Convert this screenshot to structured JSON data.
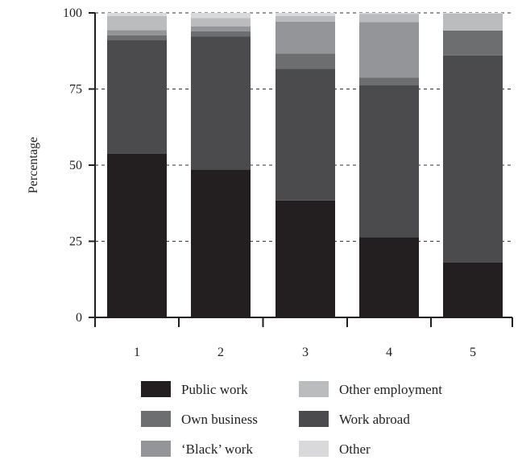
{
  "chart_data": {
    "type": "bar",
    "stacked": true,
    "categories": [
      "1",
      "2",
      "3",
      "4",
      "5"
    ],
    "ylabel": "Percentage",
    "ylim": [
      0,
      100
    ],
    "yticks": [
      0,
      25,
      50,
      75,
      100
    ],
    "grid": "horizontal-dashed",
    "legend_position": "bottom",
    "series": [
      {
        "name": "Public work",
        "color": "#231f20",
        "values": [
          53.8,
          48.6,
          38.4,
          26.4,
          18.0
        ]
      },
      {
        "name": "Work abroad",
        "color": "#4b4b4d",
        "values": [
          37.2,
          43.6,
          43.3,
          49.9,
          68.0
        ]
      },
      {
        "name": "Own business",
        "color": "#6d6e70",
        "values": [
          1.6,
          1.8,
          5.0,
          2.4,
          8.2
        ]
      },
      {
        "name": "'Black' work",
        "color": "#939598",
        "values": [
          1.7,
          1.6,
          10.4,
          18.3,
          0.0
        ]
      },
      {
        "name": "Other employment",
        "color": "#bbbcbe",
        "values": [
          4.7,
          2.7,
          1.9,
          2.7,
          5.6
        ]
      },
      {
        "name": "Other",
        "color": "#d9d9db",
        "values": [
          1.0,
          1.7,
          1.0,
          0.3,
          0.2
        ]
      }
    ],
    "legend": [
      {
        "series": 0,
        "label": "Public work"
      },
      {
        "series": 4,
        "label": "Other employment"
      },
      {
        "series": 2,
        "label": "Own business"
      },
      {
        "series": 1,
        "label": "Work abroad"
      },
      {
        "series": 3,
        "label": "‘Black’ work"
      },
      {
        "series": 5,
        "label": "Other"
      }
    ]
  }
}
